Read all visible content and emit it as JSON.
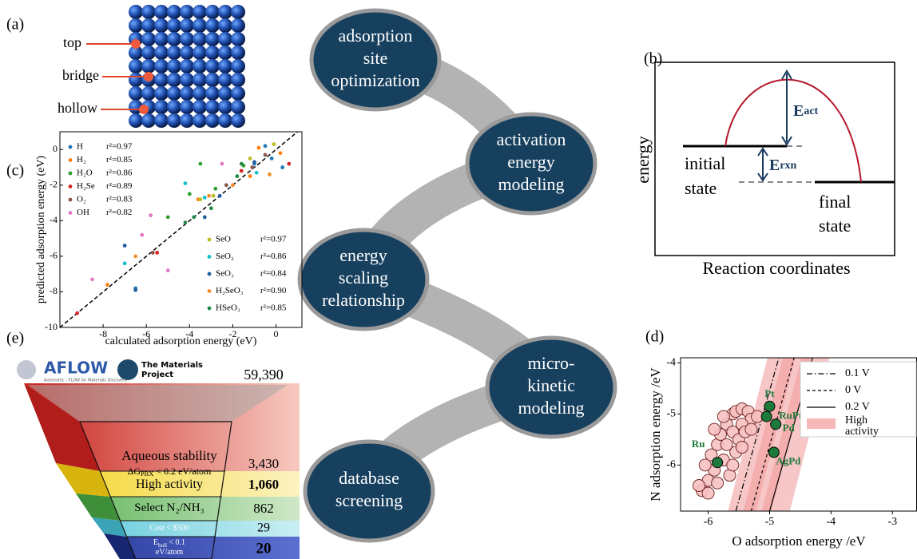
{
  "panel_a": {
    "label": "(a)",
    "sites": [
      "top",
      "bridge",
      "hollow"
    ]
  },
  "workflow": {
    "steps": [
      [
        "adsorption",
        "site",
        "optimization"
      ],
      [
        "activation",
        "energy",
        "modeling"
      ],
      [
        "energy",
        "scaling",
        "relationship"
      ],
      [
        "micro-",
        "kinetic",
        "modeling"
      ],
      [
        "database",
        "screening"
      ]
    ]
  },
  "panel_b": {
    "label": "(b)",
    "y_label": "energy",
    "x_label": "Reaction coordinates",
    "initial_state": [
      "initial",
      "state"
    ],
    "final_state": [
      "final",
      "state"
    ],
    "e_act": {
      "symbol": "E",
      "subscript": "act"
    },
    "e_rxn": {
      "symbol": "E",
      "subscript": "rxn"
    }
  },
  "chart_data": [
    {
      "type": "scatter",
      "panel_label": "(c)",
      "x_label": "calculated adsorption energy (eV)",
      "y_label": "predicted adsorption energy (eV)",
      "xlim": [
        -10,
        1.2
      ],
      "ylim": [
        -10,
        1
      ],
      "xticks": [
        -8,
        -6,
        -4,
        -2,
        0
      ],
      "yticks": [
        -10,
        -8,
        -6,
        -4,
        -2,
        0
      ],
      "diagonal": {
        "x": [
          -10,
          1
        ],
        "y": [
          -10,
          1
        ]
      },
      "series": [
        {
          "name": "H",
          "r2": "r²=0.97",
          "legend": "upper left",
          "color": "#1f77b4",
          "x": [
            -0.5,
            -0.2,
            -1,
            0.3,
            -6.5
          ],
          "y": [
            0.2,
            -0.5,
            -0.8,
            -1,
            -7.8
          ]
        },
        {
          "name": "H₂",
          "r2": "r²=0.85",
          "legend": "upper left",
          "color": "#ff7f0e",
          "x": [
            -0.8,
            0.2,
            -1.2,
            -3.6,
            -7.8
          ],
          "y": [
            0.1,
            -0.2,
            -1.5,
            -2.8,
            -7.6
          ]
        },
        {
          "name": "H₂O",
          "r2": "r²=0.86",
          "legend": "upper left",
          "color": "#2ca02c",
          "x": [
            -1.5,
            -4,
            -5,
            -2.8,
            -3.5
          ],
          "y": [
            -0.9,
            -2.5,
            -3.8,
            -2.2,
            -0.8
          ]
        },
        {
          "name": "H₂Se",
          "r2": "r²=0.89",
          "legend": "upper left",
          "color": "#d62728",
          "x": [
            0.6,
            -1.6,
            -9.2,
            -5.5
          ],
          "y": [
            -0.8,
            -1.2,
            -9.2,
            -5.8
          ]
        },
        {
          "name": "O₂",
          "r2": "r²=0.83",
          "legend": "upper left",
          "color": "#8c564b",
          "x": [
            -0.5,
            -1.1,
            -2.3,
            -5.7
          ],
          "y": [
            -0.3,
            -1,
            -2,
            -5.8
          ]
        },
        {
          "name": "OH",
          "r2": "r²=0.82",
          "legend": "upper left",
          "color": "#e377c2",
          "x": [
            -5.8,
            -6.2,
            -5,
            -8.5,
            -2.5
          ],
          "y": [
            -3.7,
            -4.8,
            -6.8,
            -7.3,
            -0.8
          ]
        },
        {
          "name": "SeO",
          "r2": "r²=0.97",
          "legend": "lower right",
          "color": "#bcbd22",
          "x": [
            -3.5,
            -2.9,
            -0.1,
            -1.2
          ],
          "y": [
            -2.8,
            -2.6,
            0.3,
            -0.5
          ]
        },
        {
          "name": "SeO₂",
          "r2": "r²=0.86",
          "legend": "lower right",
          "color": "#17becf",
          "x": [
            -4.2,
            -7,
            -3.3,
            -0.9
          ],
          "y": [
            -1.9,
            -6.4,
            -2.7,
            -1.3
          ]
        },
        {
          "name": "SeO₃",
          "r2": "r²=0.84",
          "legend": "lower right",
          "color": "#1f5f9f",
          "x": [
            -7,
            -6.5,
            -2.6,
            -3.3,
            -1
          ],
          "y": [
            -5.4,
            -7.9,
            -2.6,
            -3.8,
            -0.7
          ]
        },
        {
          "name": "H₂SeO₃",
          "r2": "r²=0.90",
          "legend": "lower right",
          "color": "#f28e2b",
          "x": [
            -6.5,
            -3.1,
            -0.3,
            -2
          ],
          "y": [
            -6,
            -2.6,
            -1.4,
            -2
          ]
        },
        {
          "name": "HSeO₃",
          "r2": "r²=0.85",
          "legend": "lower right",
          "color": "#238b45",
          "x": [
            -1.8,
            -3,
            -3.8,
            -4.2,
            -1.6
          ],
          "y": [
            -1.5,
            -3.3,
            -3.8,
            -4.1,
            -0.8
          ]
        }
      ]
    },
    {
      "type": "scatter",
      "panel_label": "(d)",
      "x_label": "O adsorption energy /eV",
      "y_label": "N adsorption energy /eV",
      "xlim": [
        -6.45,
        -2.6
      ],
      "ylim": [
        -6.9,
        -3.9
      ],
      "xticks": [
        -6,
        -5,
        -4,
        -3
      ],
      "yticks": [
        -6,
        -5,
        -4
      ],
      "lines": [
        {
          "name": "0.1 V",
          "dash": "7 3 1.5 3",
          "x": [
            -5.55,
            -4.85
          ],
          "y": [
            -6.9,
            -3.9
          ]
        },
        {
          "name": "0 V",
          "dash": "4 3",
          "x": [
            -5.3,
            -4.6
          ],
          "y": [
            -6.9,
            -3.9
          ]
        },
        {
          "name": "0.2 V",
          "dash": "none",
          "x": [
            -5.0,
            -4.3
          ],
          "y": [
            -6.9,
            -3.9
          ]
        }
      ],
      "band": {
        "name": [
          "High",
          "activity"
        ],
        "color": "#f29a9a"
      },
      "background": {
        "color": "#f7c1c1",
        "x": [
          -6.1,
          -6,
          -5.9,
          -6.05,
          -5.95,
          -5.85,
          -5.8,
          -5.7,
          -5.6,
          -5.55,
          -5.45,
          -5.35,
          -5.3,
          -5.45,
          -5.6,
          -5.7,
          -5.75,
          -5.65,
          -5.85,
          -6,
          -5.5,
          -5.4,
          -5.55,
          -5.9,
          -5.75,
          -5.3,
          -5.45,
          -5.6,
          -6.15,
          -5.2
        ],
        "y": [
          -6.5,
          -6.3,
          -6.1,
          -6,
          -5.8,
          -5.6,
          -5.4,
          -5.2,
          -5,
          -4.95,
          -4.9,
          -4.95,
          -5.1,
          -5.2,
          -5.35,
          -5.6,
          -5.9,
          -6.2,
          -6.35,
          -6.55,
          -5.5,
          -5.35,
          -5.75,
          -5.3,
          -5.05,
          -5.3,
          -5.65,
          -6,
          -6.4,
          -5.05
        ]
      },
      "catalysts": {
        "color": "#1e7a3a",
        "names": [
          "Pt",
          "RuPt₃",
          "Pd",
          "AgPd",
          "Ru"
        ],
        "x": [
          -5.0,
          -5.05,
          -4.9,
          -4.93,
          -5.85
        ],
        "y": [
          -4.85,
          -5.05,
          -5.2,
          -5.75,
          -5.95
        ]
      }
    }
  ],
  "panel_e": {
    "label": "(e)",
    "logos": [
      "AFLOW",
      "The Materials",
      "Project"
    ],
    "aflow_tagline": "Automatic - FLOW for Materials Discovery",
    "total": "59,390",
    "filters": [
      {
        "lines": [
          [
            {
              "t": "Aqueous stability"
            }
          ],
          [
            {
              "t": "ΔG"
            },
            {
              "t": "PBX",
              "sub": true
            },
            {
              "t": " < 0.2 eV/atom"
            }
          ]
        ],
        "count": "3,430"
      },
      {
        "lines": [
          [
            {
              "t": "High activity"
            }
          ]
        ],
        "count": "1,060"
      },
      {
        "lines": [
          [
            {
              "t": "Select N₂/NH₃"
            }
          ]
        ],
        "count": "862"
      },
      {
        "lines": [
          [
            {
              "t": "Cost < $500"
            }
          ]
        ],
        "count": "29"
      },
      {
        "lines": [
          [
            {
              "t": "E"
            },
            {
              "t": "hull",
              "sub": true
            },
            {
              "t": " < 0.1"
            }
          ],
          [
            {
              "t": "eV/atom"
            }
          ]
        ],
        "count": "20"
      }
    ]
  }
}
